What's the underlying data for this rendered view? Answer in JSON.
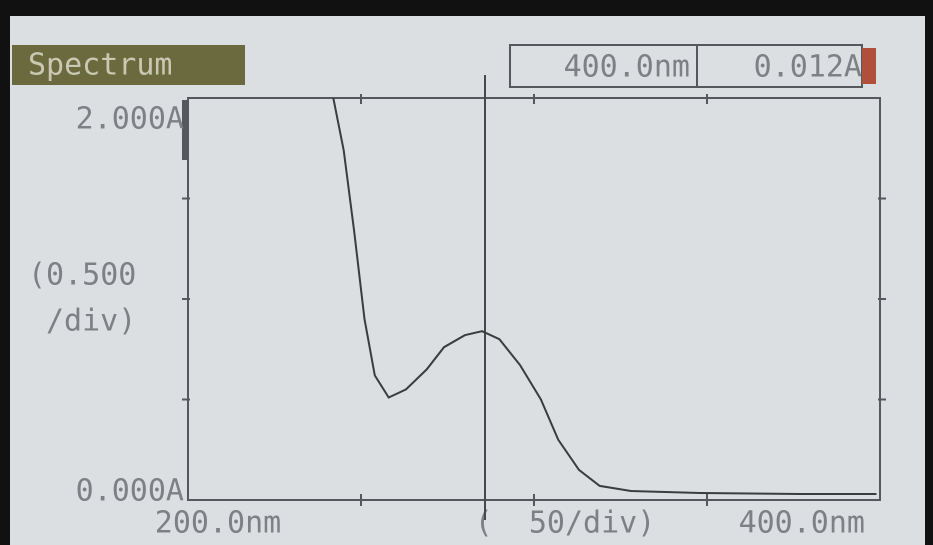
{
  "chart_data": {
    "type": "line",
    "title": "Spectrum",
    "cursor": {
      "wavelength": "400.0nm",
      "absorbance": "0.012A"
    },
    "ylabel_lines": [
      "(0.500",
      "/div)"
    ],
    "xlabel": "(  50/div)",
    "xlim": [
      200,
      400
    ],
    "xticks": [
      {
        "value": 200,
        "label": "200.0nm"
      },
      {
        "value": 400,
        "label": "400.0nm"
      }
    ],
    "xticks_minor": [
      250,
      300,
      350
    ],
    "ylim": [
      0,
      2
    ],
    "yticks": [
      {
        "value": 0,
        "label": "0.000A"
      },
      {
        "value": 2,
        "label": "2.000A"
      }
    ],
    "yticks_minor": [
      0.5,
      1,
      1.5
    ],
    "color": "#3a3c40",
    "x": [
      242,
      245,
      248,
      251,
      254,
      258,
      263,
      269,
      274,
      280,
      285,
      290,
      296,
      302,
      307,
      313,
      319,
      328,
      348,
      377,
      399
    ],
    "values": [
      2.0,
      1.74,
      1.34,
      0.9,
      0.62,
      0.51,
      0.55,
      0.65,
      0.76,
      0.82,
      0.84,
      0.8,
      0.67,
      0.5,
      0.3,
      0.15,
      0.07,
      0.045,
      0.035,
      0.03,
      0.03
    ]
  }
}
